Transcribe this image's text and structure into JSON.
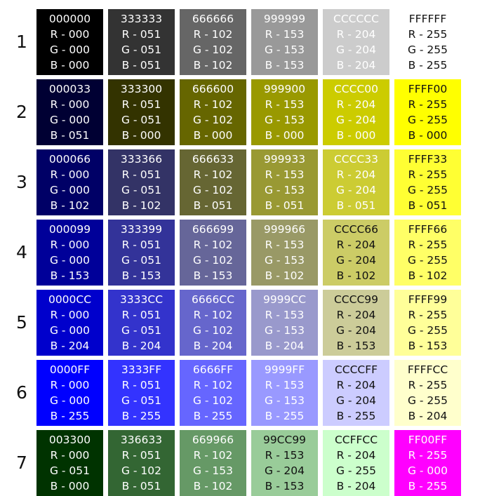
{
  "rows": [
    {
      "label": "1",
      "swatches": [
        {
          "hex": "000000",
          "color": "#000000",
          "text_color": "#ffffff",
          "r": "R - 000",
          "g": "G - 000",
          "b": "B - 000"
        },
        {
          "hex": "333333",
          "color": "#333333",
          "text_color": "#ffffff",
          "r": "R - 051",
          "g": "G - 051",
          "b": "B - 051"
        },
        {
          "hex": "666666",
          "color": "#666666",
          "text_color": "#ffffff",
          "r": "R - 102",
          "g": "G - 102",
          "b": "B - 102"
        },
        {
          "hex": "999999",
          "color": "#999999",
          "text_color": "#ffffff",
          "r": "R - 153",
          "g": "G - 153",
          "b": "B - 153"
        },
        {
          "hex": "CCCCCC",
          "color": "#cccccc",
          "text_color": "#ffffff",
          "r": "R - 204",
          "g": "G - 204",
          "b": "B - 204"
        },
        {
          "hex": "FFFFFF",
          "color": "#ffffff",
          "text_color": "#111111",
          "r": "R - 255",
          "g": "G - 255",
          "b": "B - 255"
        }
      ]
    },
    {
      "label": "2",
      "swatches": [
        {
          "hex": "000033",
          "color": "#000033",
          "text_color": "#ffffff",
          "r": "R - 000",
          "g": "G - 000",
          "b": "B - 051"
        },
        {
          "hex": "333300",
          "color": "#333300",
          "text_color": "#ffffff",
          "r": "R - 051",
          "g": "G - 051",
          "b": "B - 000"
        },
        {
          "hex": "666600",
          "color": "#666600",
          "text_color": "#ffffff",
          "r": "R - 102",
          "g": "G - 102",
          "b": "B - 000"
        },
        {
          "hex": "999900",
          "color": "#999900",
          "text_color": "#ffffff",
          "r": "R - 153",
          "g": "G - 153",
          "b": "B - 000"
        },
        {
          "hex": "CCCC00",
          "color": "#cccc00",
          "text_color": "#ffffff",
          "r": "R - 204",
          "g": "G - 204",
          "b": "B - 000"
        },
        {
          "hex": "FFFF00",
          "color": "#ffff00",
          "text_color": "#111111",
          "r": "R - 255",
          "g": "G - 255",
          "b": "B - 000"
        }
      ]
    },
    {
      "label": "3",
      "swatches": [
        {
          "hex": "000066",
          "color": "#000066",
          "text_color": "#ffffff",
          "r": "R - 000",
          "g": "G - 000",
          "b": "B - 102"
        },
        {
          "hex": "333366",
          "color": "#333366",
          "text_color": "#ffffff",
          "r": "R - 051",
          "g": "G - 051",
          "b": "B - 102"
        },
        {
          "hex": "666633",
          "color": "#666633",
          "text_color": "#ffffff",
          "r": "R - 102",
          "g": "G - 102",
          "b": "B - 051"
        },
        {
          "hex": "999933",
          "color": "#999933",
          "text_color": "#ffffff",
          "r": "R - 153",
          "g": "G - 153",
          "b": "B - 051"
        },
        {
          "hex": "CCCC33",
          "color": "#cccc33",
          "text_color": "#ffffff",
          "r": "R - 204",
          "g": "G - 204",
          "b": "B - 051"
        },
        {
          "hex": "FFFF33",
          "color": "#ffff33",
          "text_color": "#111111",
          "r": "R - 255",
          "g": "G - 255",
          "b": "B - 051"
        }
      ]
    },
    {
      "label": "4",
      "swatches": [
        {
          "hex": "000099",
          "color": "#000099",
          "text_color": "#ffffff",
          "r": "R - 000",
          "g": "G - 000",
          "b": "B - 153"
        },
        {
          "hex": "333399",
          "color": "#333399",
          "text_color": "#ffffff",
          "r": "R - 051",
          "g": "G - 051",
          "b": "B - 153"
        },
        {
          "hex": "666699",
          "color": "#666699",
          "text_color": "#ffffff",
          "r": "R - 102",
          "g": "G - 102",
          "b": "B - 153"
        },
        {
          "hex": "999966",
          "color": "#999966",
          "text_color": "#ffffff",
          "r": "R - 153",
          "g": "G - 153",
          "b": "B - 102"
        },
        {
          "hex": "CCCC66",
          "color": "#cccc66",
          "text_color": "#111111",
          "r": "R - 204",
          "g": "G - 204",
          "b": "B - 102"
        },
        {
          "hex": "FFFF66",
          "color": "#ffff66",
          "text_color": "#111111",
          "r": "R - 255",
          "g": "G - 255",
          "b": "B - 102"
        }
      ]
    },
    {
      "label": "5",
      "swatches": [
        {
          "hex": "0000CC",
          "color": "#0000cc",
          "text_color": "#ffffff",
          "r": "R - 000",
          "g": "G - 000",
          "b": "B - 204"
        },
        {
          "hex": "3333CC",
          "color": "#3333cc",
          "text_color": "#ffffff",
          "r": "R - 051",
          "g": "G - 051",
          "b": "B - 204"
        },
        {
          "hex": "6666CC",
          "color": "#6666cc",
          "text_color": "#ffffff",
          "r": "R - 102",
          "g": "G - 102",
          "b": "B - 204"
        },
        {
          "hex": "9999CC",
          "color": "#9999cc",
          "text_color": "#ffffff",
          "r": "R - 153",
          "g": "G - 153",
          "b": "B - 204"
        },
        {
          "hex": "CCCC99",
          "color": "#cccc99",
          "text_color": "#111111",
          "r": "R - 204",
          "g": "G - 204",
          "b": "B - 153"
        },
        {
          "hex": "FFFF99",
          "color": "#ffff99",
          "text_color": "#111111",
          "r": "R - 255",
          "g": "G - 255",
          "b": "B - 153"
        }
      ]
    },
    {
      "label": "6",
      "swatches": [
        {
          "hex": "0000FF",
          "color": "#0000ff",
          "text_color": "#ffffff",
          "r": "R - 000",
          "g": "G - 000",
          "b": "B - 255"
        },
        {
          "hex": "3333FF",
          "color": "#3333ff",
          "text_color": "#ffffff",
          "r": "R - 051",
          "g": "G - 051",
          "b": "B - 255"
        },
        {
          "hex": "6666FF",
          "color": "#6666ff",
          "text_color": "#ffffff",
          "r": "R - 102",
          "g": "G - 102",
          "b": "B - 255"
        },
        {
          "hex": "9999FF",
          "color": "#9999ff",
          "text_color": "#ffffff",
          "r": "R - 153",
          "g": "G - 153",
          "b": "B - 255"
        },
        {
          "hex": "CCCCFF",
          "color": "#ccccff",
          "text_color": "#111111",
          "r": "R - 204",
          "g": "G - 204",
          "b": "B - 255"
        },
        {
          "hex": "FFFFCC",
          "color": "#ffffcc",
          "text_color": "#111111",
          "r": "R - 255",
          "g": "G - 255",
          "b": "B - 204"
        }
      ]
    },
    {
      "label": "7",
      "swatches": [
        {
          "hex": "003300",
          "color": "#003300",
          "text_color": "#ffffff",
          "r": "R - 000",
          "g": "G - 051",
          "b": "B - 000"
        },
        {
          "hex": "336633",
          "color": "#336633",
          "text_color": "#ffffff",
          "r": "R - 051",
          "g": "G - 102",
          "b": "B - 051"
        },
        {
          "hex": "669966",
          "color": "#669966",
          "text_color": "#ffffff",
          "r": "R - 102",
          "g": "G - 153",
          "b": "B - 102"
        },
        {
          "hex": "99CC99",
          "color": "#99cc99",
          "text_color": "#111111",
          "r": "R - 153",
          "g": "G - 204",
          "b": "B - 153"
        },
        {
          "hex": "CCFFCC",
          "color": "#ccffcc",
          "text_color": "#111111",
          "r": "R - 204",
          "g": "G - 255",
          "b": "B - 204"
        },
        {
          "hex": "FF00FF",
          "color": "#ff00ff",
          "text_color": "#ffffff",
          "r": "R - 255",
          "g": "G - 000",
          "b": "B - 255"
        }
      ]
    }
  ]
}
